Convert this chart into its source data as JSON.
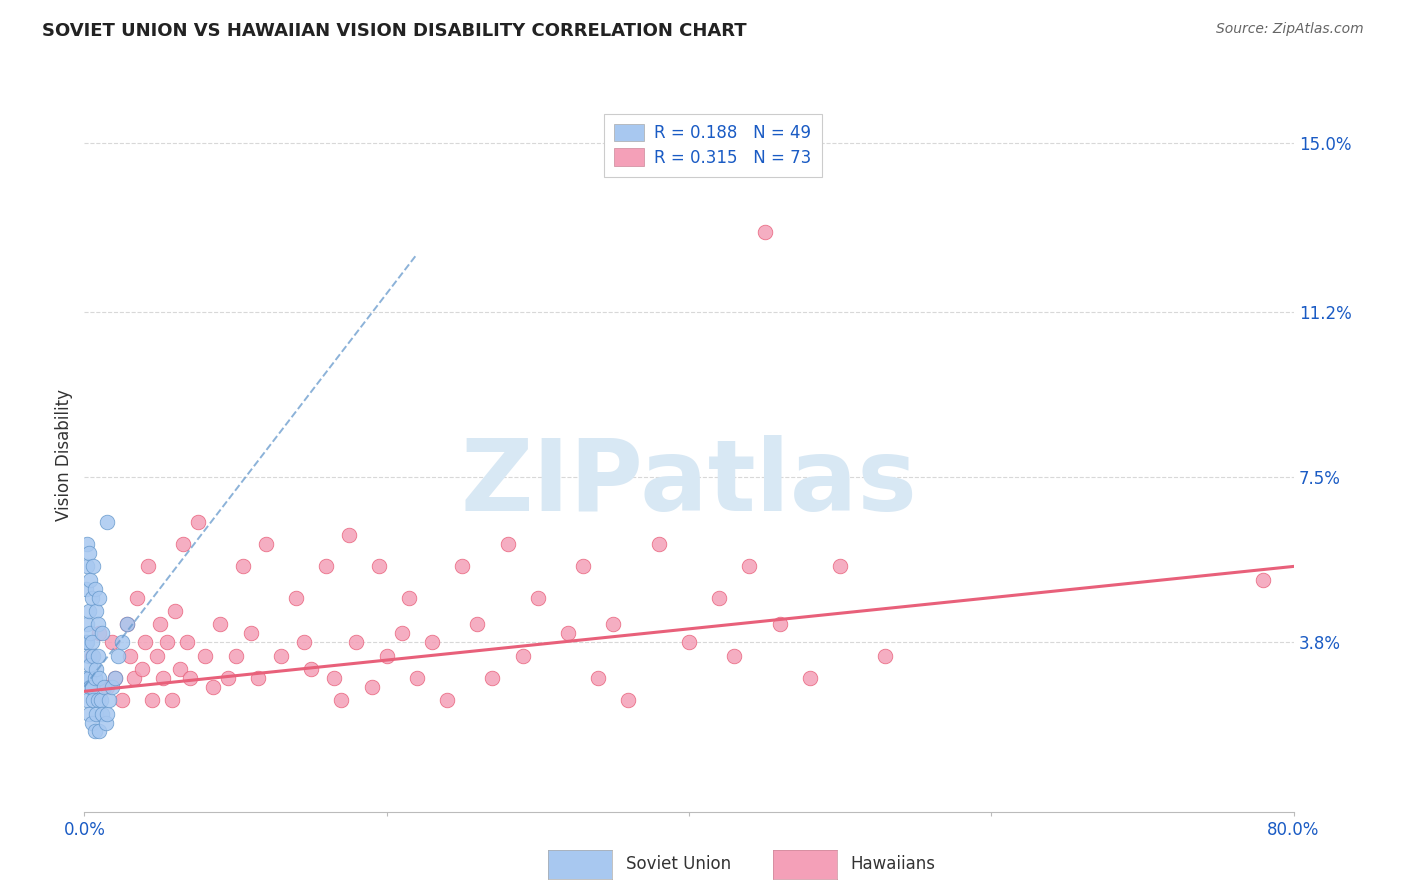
{
  "title": "SOVIET UNION VS HAWAIIAN VISION DISABILITY CORRELATION CHART",
  "source": "Source: ZipAtlas.com",
  "ylabel": "Vision Disability",
  "xlim": [
    0.0,
    0.8
  ],
  "ylim": [
    0.0,
    0.16
  ],
  "yticks": [
    0.038,
    0.075,
    0.112,
    0.15
  ],
  "ytick_labels": [
    "3.8%",
    "7.5%",
    "11.2%",
    "15.0%"
  ],
  "xticks": [
    0.0,
    0.2,
    0.4,
    0.6,
    0.8
  ],
  "xtick_labels": [
    "0.0%",
    "",
    "",
    "",
    "80.0%"
  ],
  "color_soviet": "#a8c8f0",
  "color_hawaiian": "#f4a0b8",
  "color_trendline_soviet": "#6699cc",
  "color_trendline_hawaiian": "#e8607a",
  "color_axis_labels": "#1a5bc4",
  "watermark_text": "ZIPatlas",
  "watermark_color": "#d8e8f4",
  "grid_color": "#d8d8d8",
  "background_color": "#ffffff",
  "legend_labels": [
    "R = 0.188   N = 49",
    "R = 0.315   N = 73"
  ],
  "bottom_legend": [
    "Soviet Union",
    "Hawaiians"
  ],
  "soviet_x": [
    0.001,
    0.001,
    0.002,
    0.002,
    0.002,
    0.003,
    0.003,
    0.003,
    0.003,
    0.004,
    0.004,
    0.004,
    0.005,
    0.005,
    0.005,
    0.006,
    0.006,
    0.007,
    0.007,
    0.008,
    0.008,
    0.009,
    0.009,
    0.01,
    0.01,
    0.011,
    0.012,
    0.013,
    0.014,
    0.015,
    0.016,
    0.018,
    0.02,
    0.022,
    0.025,
    0.028,
    0.001,
    0.002,
    0.002,
    0.003,
    0.004,
    0.005,
    0.006,
    0.007,
    0.008,
    0.009,
    0.01,
    0.012,
    0.015
  ],
  "soviet_y": [
    0.03,
    0.038,
    0.025,
    0.038,
    0.042,
    0.022,
    0.03,
    0.035,
    0.045,
    0.028,
    0.033,
    0.04,
    0.02,
    0.028,
    0.038,
    0.025,
    0.035,
    0.018,
    0.03,
    0.022,
    0.032,
    0.025,
    0.035,
    0.018,
    0.03,
    0.025,
    0.022,
    0.028,
    0.02,
    0.022,
    0.025,
    0.028,
    0.03,
    0.035,
    0.038,
    0.042,
    0.05,
    0.055,
    0.06,
    0.058,
    0.052,
    0.048,
    0.055,
    0.05,
    0.045,
    0.042,
    0.048,
    0.04,
    0.065
  ],
  "hawaiian_x": [
    0.005,
    0.01,
    0.015,
    0.018,
    0.02,
    0.025,
    0.028,
    0.03,
    0.033,
    0.035,
    0.038,
    0.04,
    0.042,
    0.045,
    0.048,
    0.05,
    0.052,
    0.055,
    0.058,
    0.06,
    0.063,
    0.065,
    0.068,
    0.07,
    0.075,
    0.08,
    0.085,
    0.09,
    0.095,
    0.1,
    0.105,
    0.11,
    0.115,
    0.12,
    0.13,
    0.14,
    0.145,
    0.15,
    0.16,
    0.165,
    0.17,
    0.175,
    0.18,
    0.19,
    0.195,
    0.2,
    0.21,
    0.215,
    0.22,
    0.23,
    0.24,
    0.25,
    0.26,
    0.27,
    0.28,
    0.29,
    0.3,
    0.32,
    0.33,
    0.34,
    0.35,
    0.36,
    0.38,
    0.4,
    0.42,
    0.43,
    0.44,
    0.45,
    0.46,
    0.48,
    0.5,
    0.53,
    0.78
  ],
  "hawaiian_y": [
    0.035,
    0.04,
    0.028,
    0.038,
    0.03,
    0.025,
    0.042,
    0.035,
    0.03,
    0.048,
    0.032,
    0.038,
    0.055,
    0.025,
    0.035,
    0.042,
    0.03,
    0.038,
    0.025,
    0.045,
    0.032,
    0.06,
    0.038,
    0.03,
    0.065,
    0.035,
    0.028,
    0.042,
    0.03,
    0.035,
    0.055,
    0.04,
    0.03,
    0.06,
    0.035,
    0.048,
    0.038,
    0.032,
    0.055,
    0.03,
    0.025,
    0.062,
    0.038,
    0.028,
    0.055,
    0.035,
    0.04,
    0.048,
    0.03,
    0.038,
    0.025,
    0.055,
    0.042,
    0.03,
    0.06,
    0.035,
    0.048,
    0.04,
    0.055,
    0.03,
    0.042,
    0.025,
    0.06,
    0.038,
    0.048,
    0.035,
    0.055,
    0.13,
    0.042,
    0.03,
    0.055,
    0.035,
    0.052
  ],
  "haw_trendline_x": [
    0.0,
    0.8
  ],
  "haw_trendline_y": [
    0.027,
    0.055
  ],
  "sov_trendline_x": [
    0.0,
    0.22
  ],
  "sov_trendline_y": [
    0.028,
    0.125
  ]
}
